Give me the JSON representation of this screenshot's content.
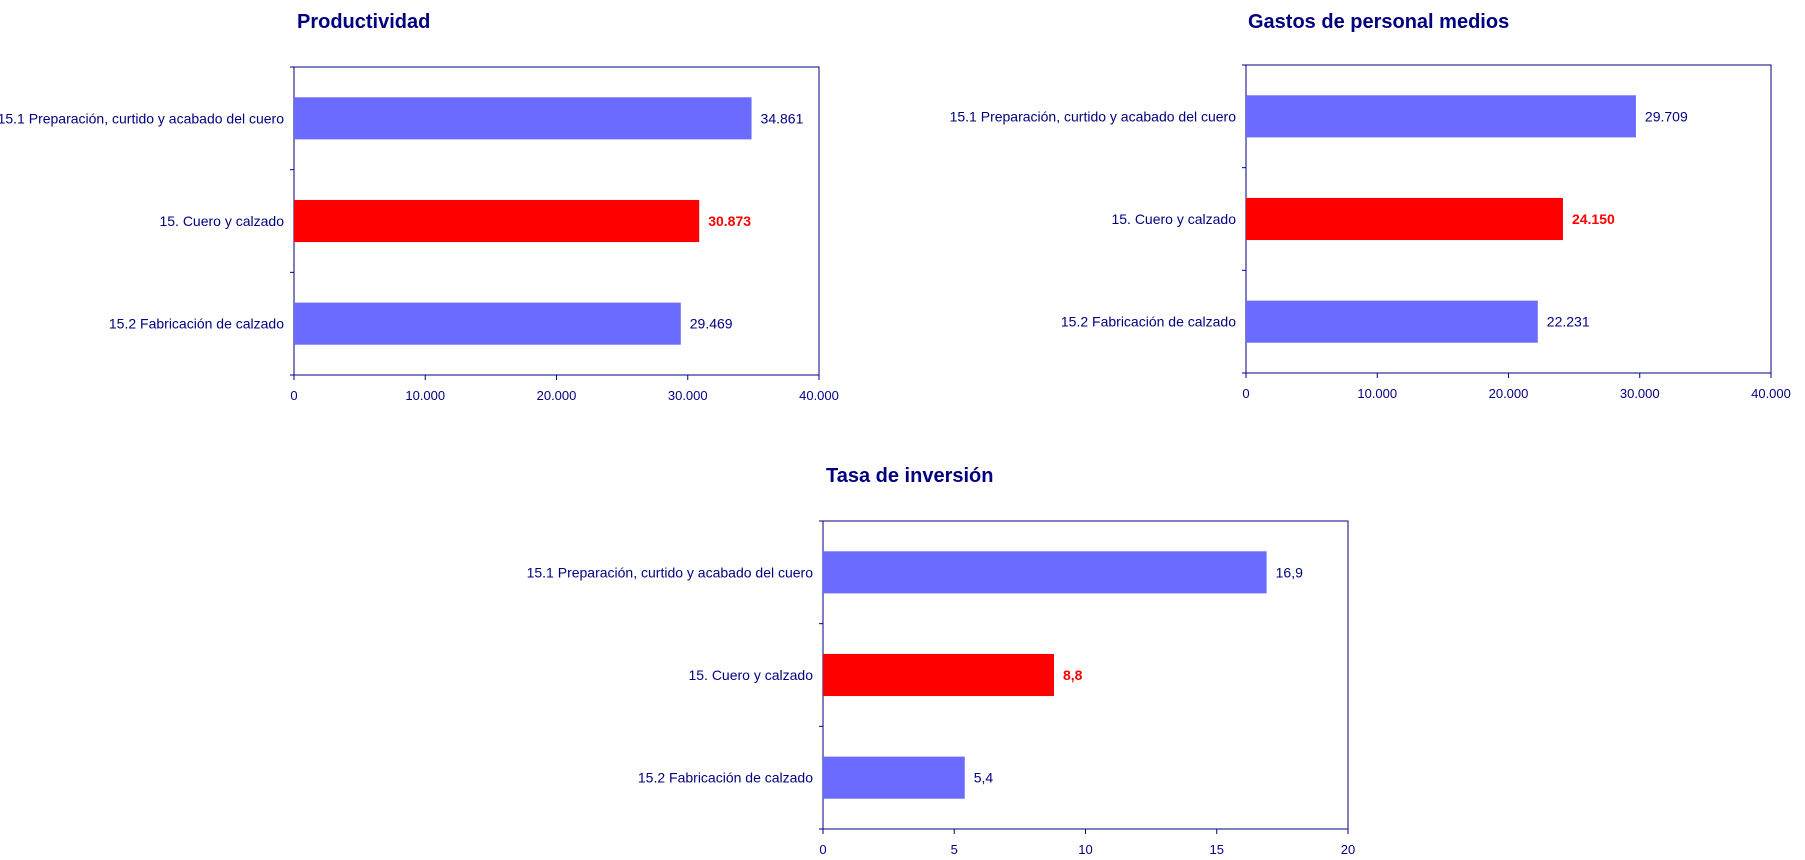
{
  "chart_data": [
    {
      "type": "bar",
      "orientation": "horizontal",
      "title": "Productividad",
      "categories": [
        "15.1 Preparación, curtido y acabado del cuero",
        "15. Cuero y calzado",
        "15.2 Fabricación de calzado"
      ],
      "values": [
        34861,
        30873,
        29469
      ],
      "data_labels": [
        "34.861",
        "30.873",
        "29.469"
      ],
      "highlight_index": 1,
      "xlim": [
        0,
        40000
      ],
      "xticks": [
        0,
        10000,
        20000,
        30000,
        40000
      ],
      "xtick_labels": [
        "0",
        "10.000",
        "20.000",
        "30.000",
        "40.000"
      ],
      "xlabel": "",
      "ylabel": "",
      "grid": false
    },
    {
      "type": "bar",
      "orientation": "horizontal",
      "title": "Gastos de personal medios",
      "categories": [
        "15.1 Preparación, curtido y acabado del cuero",
        "15. Cuero y calzado",
        "15.2 Fabricación de calzado"
      ],
      "values": [
        29709,
        24150,
        22231
      ],
      "data_labels": [
        "29.709",
        "24.150",
        "22.231"
      ],
      "highlight_index": 1,
      "xlim": [
        0,
        40000
      ],
      "xticks": [
        0,
        10000,
        20000,
        30000,
        40000
      ],
      "xtick_labels": [
        "0",
        "10.000",
        "20.000",
        "30.000",
        "40.000"
      ],
      "xlabel": "",
      "ylabel": "",
      "grid": false
    },
    {
      "type": "bar",
      "orientation": "horizontal",
      "title": "Tasa de inversión",
      "categories": [
        "15.1 Preparación, curtido y acabado del cuero",
        "15. Cuero y calzado",
        "15.2 Fabricación de calzado"
      ],
      "values": [
        16.9,
        8.8,
        5.4
      ],
      "data_labels": [
        "16,9",
        "8,8",
        "5,4"
      ],
      "highlight_index": 1,
      "xlim": [
        0,
        20
      ],
      "xticks": [
        0,
        5,
        10,
        15,
        20
      ],
      "xtick_labels": [
        "0",
        "5",
        "10",
        "15",
        "20"
      ],
      "xlabel": "",
      "ylabel": "",
      "grid": false
    }
  ],
  "colors": {
    "bar": "#6b6bff",
    "highlight_bar": "#ff0000",
    "text": "#000080",
    "highlight_text": "#ff0000",
    "axis": "#000080"
  }
}
